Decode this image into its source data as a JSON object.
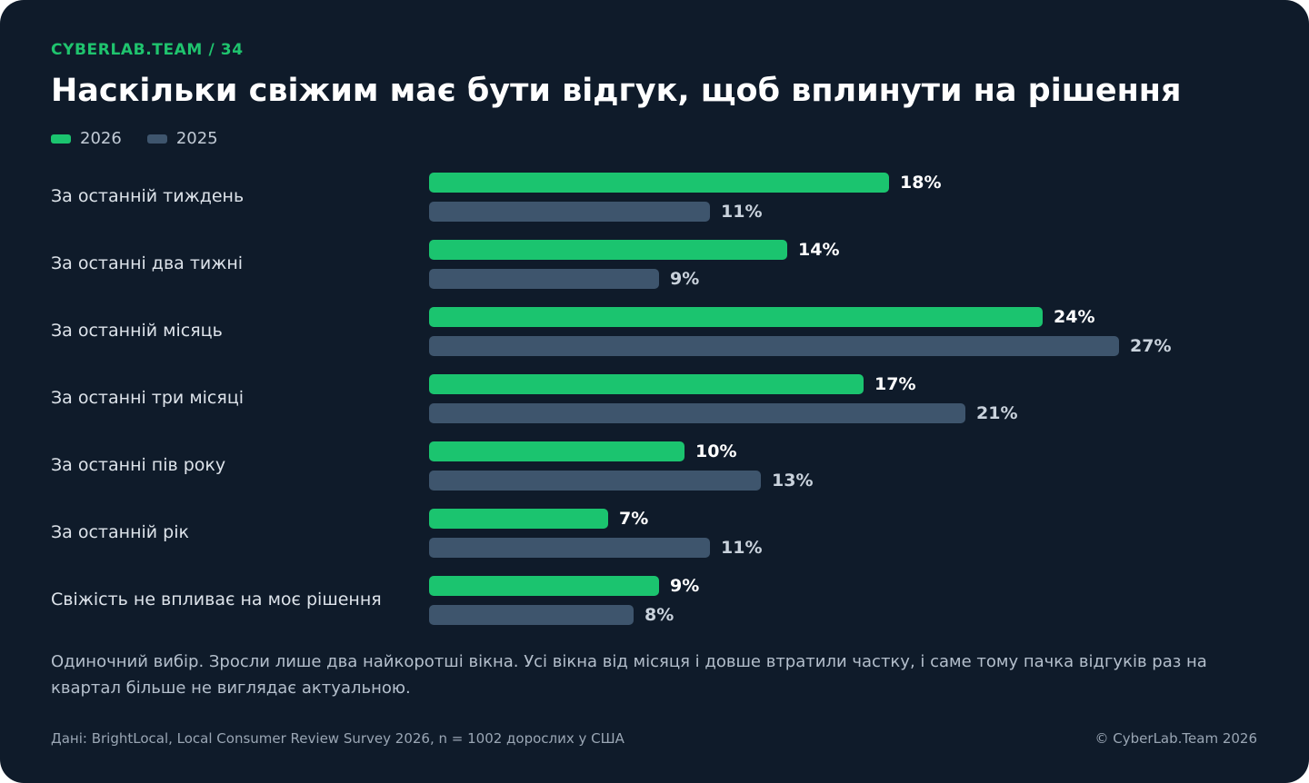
{
  "header": {
    "kicker": "CYBERLAB.TEAM / 34",
    "title": "Наскільки свіжим має бути відгук, щоб вплинути на рішення"
  },
  "colors": {
    "background": "#0f1b2a",
    "series_2026": "#1bc46f",
    "series_2025": "#3e556d",
    "accent": "#1fc46e"
  },
  "chart_data": {
    "type": "bar",
    "orientation": "horizontal",
    "categories": [
      "За останній тиждень",
      "За останні два тижні",
      "За останній місяць",
      "За останні три місяці",
      "За останні пів року",
      "За останній рік",
      "Свіжість не впливає на моє рішення"
    ],
    "series": [
      {
        "name": "2026",
        "color": "#1bc46f",
        "values": [
          18,
          14,
          24,
          17,
          10,
          7,
          9
        ],
        "labels": [
          "18%",
          "14%",
          "24%",
          "17%",
          "10%",
          "7%",
          "9%"
        ]
      },
      {
        "name": "2025",
        "color": "#3e556d",
        "values": [
          11,
          9,
          27,
          21,
          13,
          11,
          8
        ],
        "labels": [
          "11%",
          "9%",
          "27%",
          "21%",
          "13%",
          "11%",
          "8%"
        ]
      }
    ],
    "xlim": [
      0,
      27
    ],
    "unit": "%",
    "legend_position": "top-left",
    "grid": false
  },
  "footer": {
    "note": "Одиночний вибір. Зросли лише два найкоротші вікна. Усі вікна від місяця і довше втратили частку, і саме тому пачка відгуків раз на квартал більше не виглядає актуальною.",
    "source": "Дані: BrightLocal, Local Consumer Review Survey 2026, n = 1002 дорослих у США",
    "copyright": "© CyberLab.Team  2026"
  }
}
